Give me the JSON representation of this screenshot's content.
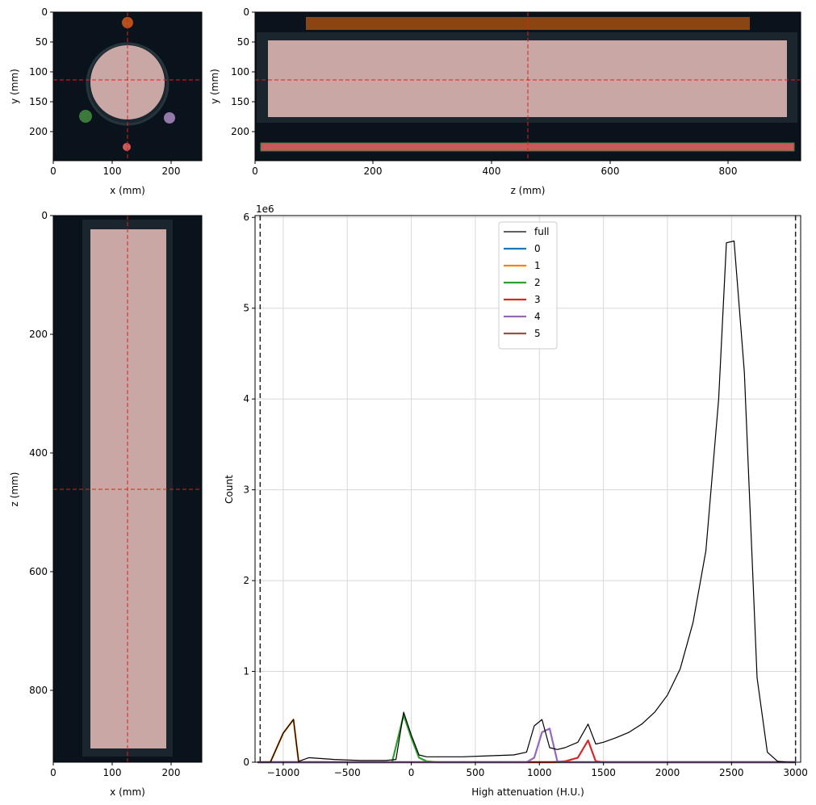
{
  "figure": {
    "panels": {
      "xy": {
        "xlabel": "x (mm)",
        "ylabel": "y (mm)",
        "xticks": [
          "0",
          "100",
          "200"
        ],
        "yticks": [
          "0",
          "50",
          "100",
          "150",
          "200"
        ]
      },
      "zy": {
        "xlabel": "z (mm)",
        "ylabel": "y (mm)",
        "xticks": [
          "0",
          "200",
          "400",
          "600",
          "800"
        ],
        "yticks": [
          "0",
          "50",
          "100",
          "150",
          "200"
        ]
      },
      "xz": {
        "xlabel": "x (mm)",
        "ylabel": "z (mm)",
        "xticks": [
          "0",
          "100",
          "200"
        ],
        "yticks": [
          "0",
          "200",
          "400",
          "600",
          "800"
        ]
      }
    },
    "crosshair": {
      "x_mm": 126,
      "y_mm": 114,
      "z_mm": 462,
      "color": "#e0201e"
    }
  },
  "chart_data": {
    "type": "line",
    "xlabel": "High attenuation (H.U.)",
    "ylabel": "Count",
    "offset_text": "1e6",
    "xlim": [
      -1220,
      3040
    ],
    "ylim": [
      0,
      6.02
    ],
    "xticks": [
      -1000,
      -500,
      0,
      500,
      1000,
      1500,
      2000,
      2500,
      3000
    ],
    "xtick_labels": [
      "−1000",
      "−500",
      "0",
      "500",
      "1000",
      "1500",
      "2000",
      "2500",
      "3000"
    ],
    "yticks": [
      0,
      1,
      2,
      3,
      4,
      5,
      6
    ],
    "ytick_labels": [
      "0",
      "1",
      "2",
      "3",
      "4",
      "5",
      "6"
    ],
    "grid": true,
    "legend_position": "top-center",
    "vlines": [
      -1180,
      3000
    ],
    "series": [
      {
        "name": "full",
        "color": "#000000",
        "width": 1.2,
        "x": [
          -1200,
          -1100,
          -1000,
          -920,
          -880,
          -800,
          -600,
          -400,
          -200,
          -120,
          -60,
          0,
          60,
          120,
          200,
          400,
          600,
          800,
          900,
          960,
          1020,
          1080,
          1140,
          1200,
          1300,
          1380,
          1440,
          1500,
          1600,
          1700,
          1800,
          1900,
          2000,
          2100,
          2200,
          2300,
          2400,
          2460,
          2520,
          2600,
          2700,
          2780,
          2860,
          2940,
          3000
        ],
        "y": [
          0,
          0,
          0.32,
          0.47,
          0.01,
          0.05,
          0.03,
          0.02,
          0.02,
          0.03,
          0.55,
          0.3,
          0.08,
          0.06,
          0.06,
          0.06,
          0.07,
          0.08,
          0.11,
          0.4,
          0.47,
          0.16,
          0.14,
          0.16,
          0.22,
          0.42,
          0.2,
          0.22,
          0.27,
          0.33,
          0.42,
          0.55,
          0.74,
          1.03,
          1.54,
          2.33,
          4.0,
          5.72,
          5.74,
          4.3,
          0.93,
          0.11,
          0.01,
          0,
          0
        ]
      },
      {
        "name": "0",
        "color": "#1f77b4",
        "width": 2.2,
        "x": [
          -1200,
          3000
        ],
        "y": [
          0,
          0
        ]
      },
      {
        "name": "1",
        "color": "#ff7f0e",
        "width": 2.2,
        "x": [
          -1200,
          -1100,
          -1000,
          -920,
          -880,
          -800,
          3000
        ],
        "y": [
          0,
          0,
          0.32,
          0.47,
          0,
          0,
          0
        ]
      },
      {
        "name": "2",
        "color": "#2ca02c",
        "width": 2.2,
        "x": [
          -1200,
          -150,
          -60,
          0,
          60,
          120,
          200,
          3000
        ],
        "y": [
          0,
          0,
          0.52,
          0.27,
          0.05,
          0.01,
          0,
          0
        ]
      },
      {
        "name": "3",
        "color": "#d62728",
        "width": 2.2,
        "x": [
          -1200,
          1100,
          1200,
          1300,
          1380,
          1440,
          1500,
          3000
        ],
        "y": [
          0,
          0,
          0.01,
          0.05,
          0.24,
          0.01,
          0,
          0
        ]
      },
      {
        "name": "4",
        "color": "#9467bd",
        "width": 2.2,
        "x": [
          -1200,
          900,
          960,
          1020,
          1080,
          1140,
          1200,
          3000
        ],
        "y": [
          0,
          0,
          0.05,
          0.33,
          0.37,
          0.01,
          0,
          0
        ]
      },
      {
        "name": "5",
        "color": "#8c564b",
        "width": 2.2,
        "x": [
          -1200,
          -900,
          -800,
          -600,
          -400,
          -200,
          0,
          200,
          400,
          600,
          800,
          900,
          1000,
          1100,
          1200,
          1300,
          1400,
          1500,
          1600,
          1700,
          1800,
          1900,
          2000,
          2100,
          2200,
          2300,
          2400,
          2460,
          2520,
          2600,
          2700,
          2780,
          2860,
          2940,
          3000
        ],
        "y": [
          0,
          0,
          0.05,
          0.03,
          0.02,
          0.02,
          0.03,
          0.04,
          0.05,
          0.06,
          0.07,
          0.08,
          0.1,
          0.11,
          0.13,
          0.15,
          0.18,
          0.21,
          0.26,
          0.32,
          0.41,
          0.54,
          0.72,
          1.03,
          1.54,
          2.33,
          4.0,
          5.72,
          5.74,
          4.3,
          0.93,
          0.11,
          0.01,
          0,
          0
        ]
      }
    ]
  }
}
